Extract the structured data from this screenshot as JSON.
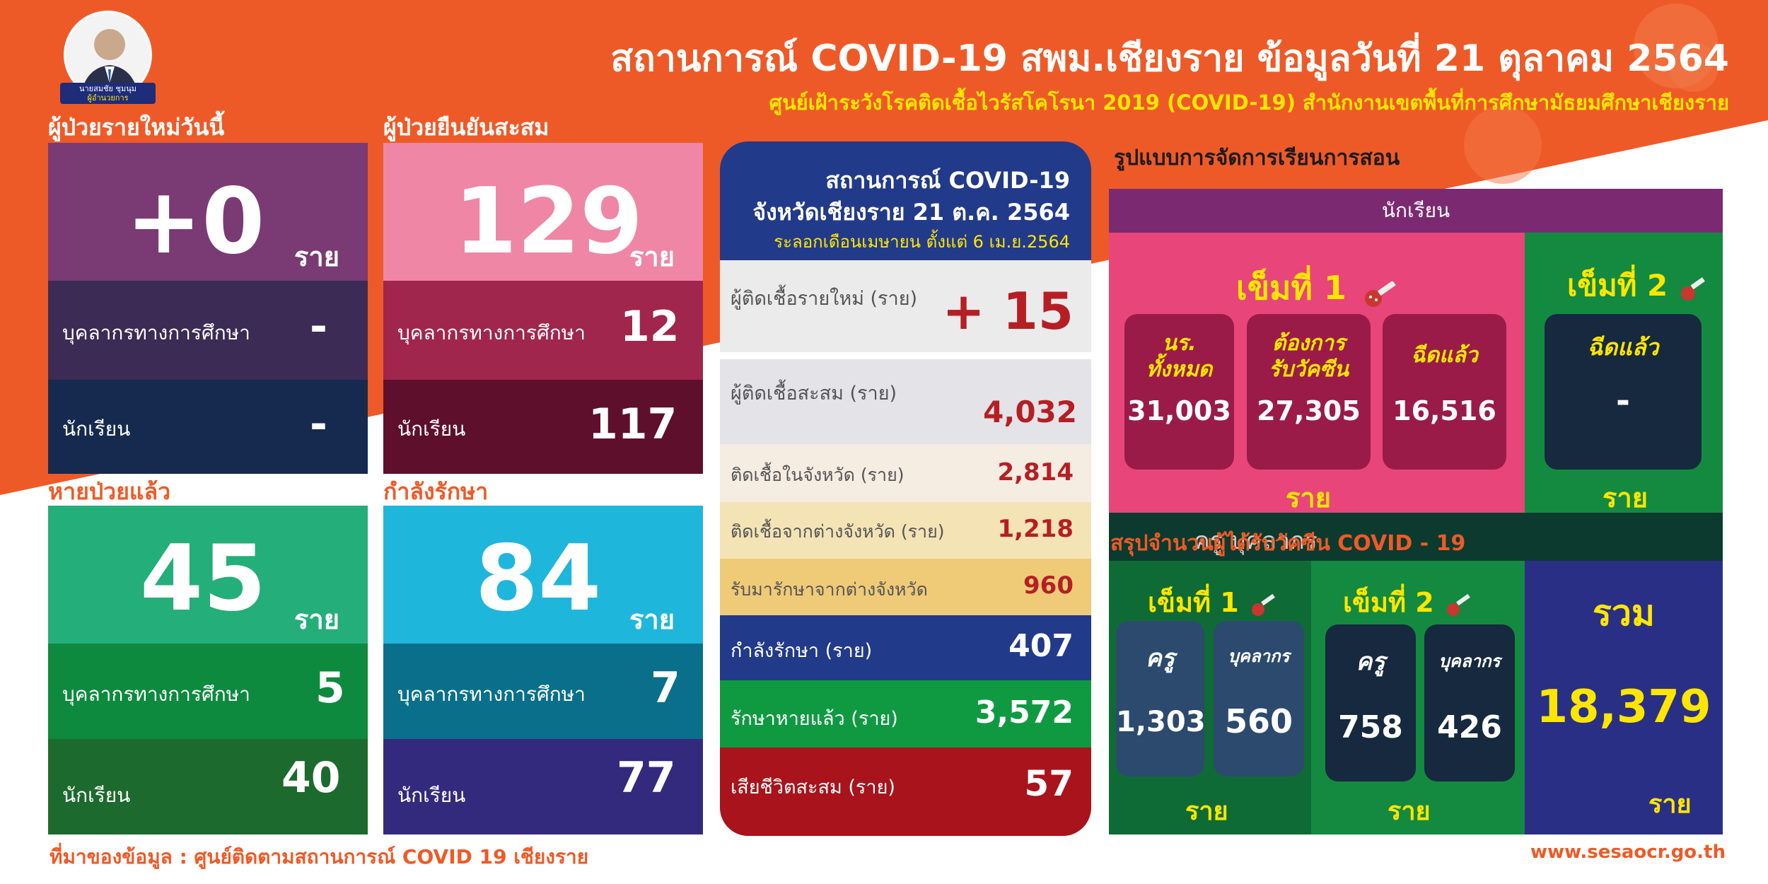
{
  "header": {
    "title": "สถานการณ์ COVID-19 สพม.เชียงราย ข้อมูลวันที่ 21 ตุลาคม 2564",
    "subtitle": "ศูนย์เฝ้าระวังโรคติดเชื้อไวรัสโคโรนา 2019 (COVID-19) สำนักงานเขตพื้นที่การศึกษามัธยมศึกษาเชียงราย",
    "avatar_name": "นายสมชัย ชุมนุม",
    "avatar_role": "ผู้อำนวยการ"
  },
  "new_today": {
    "title": "ผู้ป่วยรายใหม่วันนี้",
    "total": "+0",
    "unit": "ราย",
    "staff_label": "บุคลากรทางการศึกษา",
    "staff_value": "-",
    "student_label": "นักเรียน",
    "student_value": "-"
  },
  "cumulative": {
    "title": "ผู้ป่วยยืนยันสะสม",
    "total": "129",
    "unit": "ราย",
    "staff_label": "บุคลากรทางการศึกษา",
    "staff_value": "12",
    "student_label": "นักเรียน",
    "student_value": "117"
  },
  "recovered": {
    "title": "หายป่วยแล้ว",
    "total": "45",
    "unit": "ราย",
    "staff_label": "บุคลากรทางการศึกษา",
    "staff_value": "5",
    "student_label": "นักเรียน",
    "student_value": "40"
  },
  "treating": {
    "title": "กำลังรักษา",
    "total": "84",
    "unit": "ราย",
    "staff_label": "บุคลากรทางการศึกษา",
    "staff_value": "7",
    "student_label": "นักเรียน",
    "student_value": "77"
  },
  "province": {
    "head_line1": "สถานการณ์ COVID-19",
    "head_line2": "จังหวัดเชียงราย 21 ต.ค. 2564",
    "head_line3": "ระลอกเดือนเมษายน ตั้งแต่ 6 เม.ย.2564",
    "new_label": "ผู้ติดเชื้อรายใหม่ (ราย)",
    "new_value": "+ 15",
    "cum_label": "ผู้ติดเชื้อสะสม (ราย)",
    "cum_value": "4,032",
    "in_label": "ติดเชื้อในจังหวัด (ราย)",
    "in_value": "2,814",
    "out_label": "ติดเชื้อจากต่างจังหวัด (ราย)",
    "out_value": "1,218",
    "transfer_label": "รับมารักษาจากต่างจังหวัด",
    "transfer_value": "960",
    "treating_label": "กำลังรักษา (ราย)",
    "treating_value": "407",
    "cured_label": "รักษาหายแล้ว (ราย)",
    "cured_value": "3,572",
    "death_label": "เสียชีวิตสะสม (ราย)",
    "death_value": "57"
  },
  "teaching": {
    "title": "รูปแบบการจัดการเรียนการสอน",
    "students_header": "นักเรียน",
    "dose1_label": "เข็มที่ 1",
    "dose2_label": "เข็มที่ 2",
    "all_label1": "นร.",
    "all_label2": "ทั้งหมด",
    "all_value": "31,003",
    "want_label1": "ต้องการ",
    "want_label2": "รับวัคซีน",
    "want_value": "27,305",
    "done_label": "ฉีดแล้ว",
    "done_value": "16,516",
    "dose2_done_label": "ฉีดแล้ว",
    "dose2_done_value": "-",
    "unit": "ราย"
  },
  "vaccine_staff": {
    "title": "สรุปจำนวนผู้ได้รับวัคซีน COVID - 19",
    "hidden_header": "ครู บุคลากร",
    "dose1_label": "เข็มที่ 1",
    "dose2_label": "เข็มที่ 2",
    "teacher_label": "ครู",
    "staff_label": "บุคลากร",
    "d1_teacher": "1,303",
    "d1_staff": "560",
    "d2_teacher": "758",
    "d2_staff": "426",
    "total_label": "รวม",
    "total_value": "18,379",
    "unit": "ราย"
  },
  "footer": {
    "source": "ที่มาของข้อมูล : ศูนย์ติดตามสถานการณ์ COVID 19 เชียงราย",
    "website": "www.sesaocr.go.th"
  },
  "colors": {
    "orange": "#ee5a27",
    "yellow": "#ffe600",
    "navy": "#223a8a",
    "pink": "#e84a7f",
    "green": "#118a3c"
  }
}
